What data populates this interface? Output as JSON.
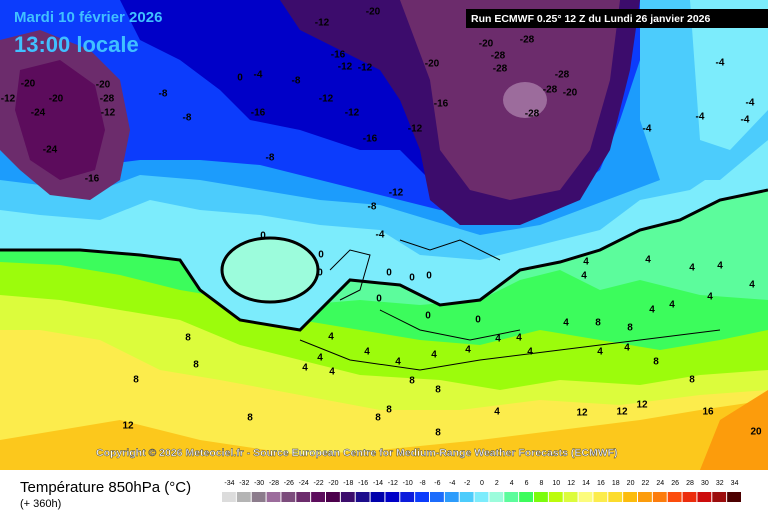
{
  "header": {
    "date": "Mardi 10 février 2026",
    "time": "13:00 locale",
    "run": "Run ECMWF 0.25° 12 Z du Lundi 26 janvier 2026"
  },
  "copyright": "Copyright © 2026 Meteociel.fr - Source European Centre for Medium-Range Weather Forecasts (ECMWF)",
  "legend": {
    "title": "Température 850hPa (°C)",
    "lead_time": "(+ 360h)",
    "scale": [
      {
        "value": -34,
        "color": "#dcdcdc"
      },
      {
        "value": -32,
        "color": "#b4b4b4"
      },
      {
        "value": -30,
        "color": "#8c7c8c"
      },
      {
        "value": -28,
        "color": "#9c6c9c"
      },
      {
        "value": -26,
        "color": "#7c4c7c"
      },
      {
        "value": -24,
        "color": "#6c2c6c"
      },
      {
        "value": -22,
        "color": "#5c0c5c"
      },
      {
        "value": -20,
        "color": "#4c004c"
      },
      {
        "value": -18,
        "color": "#3c0c6c"
      },
      {
        "value": -16,
        "color": "#1c0c8c"
      },
      {
        "value": -14,
        "color": "#0000ac"
      },
      {
        "value": -12,
        "color": "#0000c8"
      },
      {
        "value": -10,
        "color": "#0c1cdc"
      },
      {
        "value": -8,
        "color": "#0c3cfc"
      },
      {
        "value": -6,
        "color": "#1c6cfc"
      },
      {
        "value": -4,
        "color": "#2c9cfc"
      },
      {
        "value": -2,
        "color": "#4cccfc"
      },
      {
        "value": 0,
        "color": "#7cecfc"
      },
      {
        "value": 2,
        "color": "#9cfcdc"
      },
      {
        "value": 4,
        "color": "#5cfc9c"
      },
      {
        "value": 6,
        "color": "#3cfc5c"
      },
      {
        "value": 8,
        "color": "#7cfc0c"
      },
      {
        "value": 10,
        "color": "#bcfc0c"
      },
      {
        "value": 12,
        "color": "#dcfc3c"
      },
      {
        "value": 14,
        "color": "#fcfc7c"
      },
      {
        "value": 16,
        "color": "#fcec4c"
      },
      {
        "value": 18,
        "color": "#fcdc2c"
      },
      {
        "value": 20,
        "color": "#fcbc0c"
      },
      {
        "value": 22,
        "color": "#fc9c0c"
      },
      {
        "value": 24,
        "color": "#fc7c0c"
      },
      {
        "value": 26,
        "color": "#fc4c0c"
      },
      {
        "value": 28,
        "color": "#ec2c0c"
      },
      {
        "value": 30,
        "color": "#cc0c0c"
      },
      {
        "value": 32,
        "color": "#9c0c0c"
      },
      {
        "value": 34,
        "color": "#4c0000"
      }
    ]
  },
  "contour_labels": [
    -20,
    -20,
    -20,
    -28,
    -12,
    -24,
    -12,
    -8,
    -24,
    -16,
    -8,
    0,
    -4,
    -16,
    -8,
    -12,
    -12,
    -16,
    -12,
    -12,
    -12,
    -16,
    -8,
    -16,
    -12,
    -20,
    -20,
    -20,
    -28,
    -28,
    -28,
    -28,
    -28,
    -20,
    -28,
    -12,
    -8,
    -4,
    0,
    0,
    0,
    0,
    0,
    0,
    0,
    0,
    0,
    -4,
    -4,
    -4,
    -4,
    -4,
    4,
    4,
    4,
    4,
    4,
    4,
    4,
    4,
    4,
    8,
    8,
    4,
    4,
    4,
    4,
    4,
    4,
    4,
    4,
    4,
    4,
    4,
    4,
    4,
    8,
    8,
    8,
    8,
    8,
    8,
    8,
    4,
    8,
    8,
    12,
    12,
    12,
    16,
    20,
    12,
    8,
    8,
    4
  ]
}
